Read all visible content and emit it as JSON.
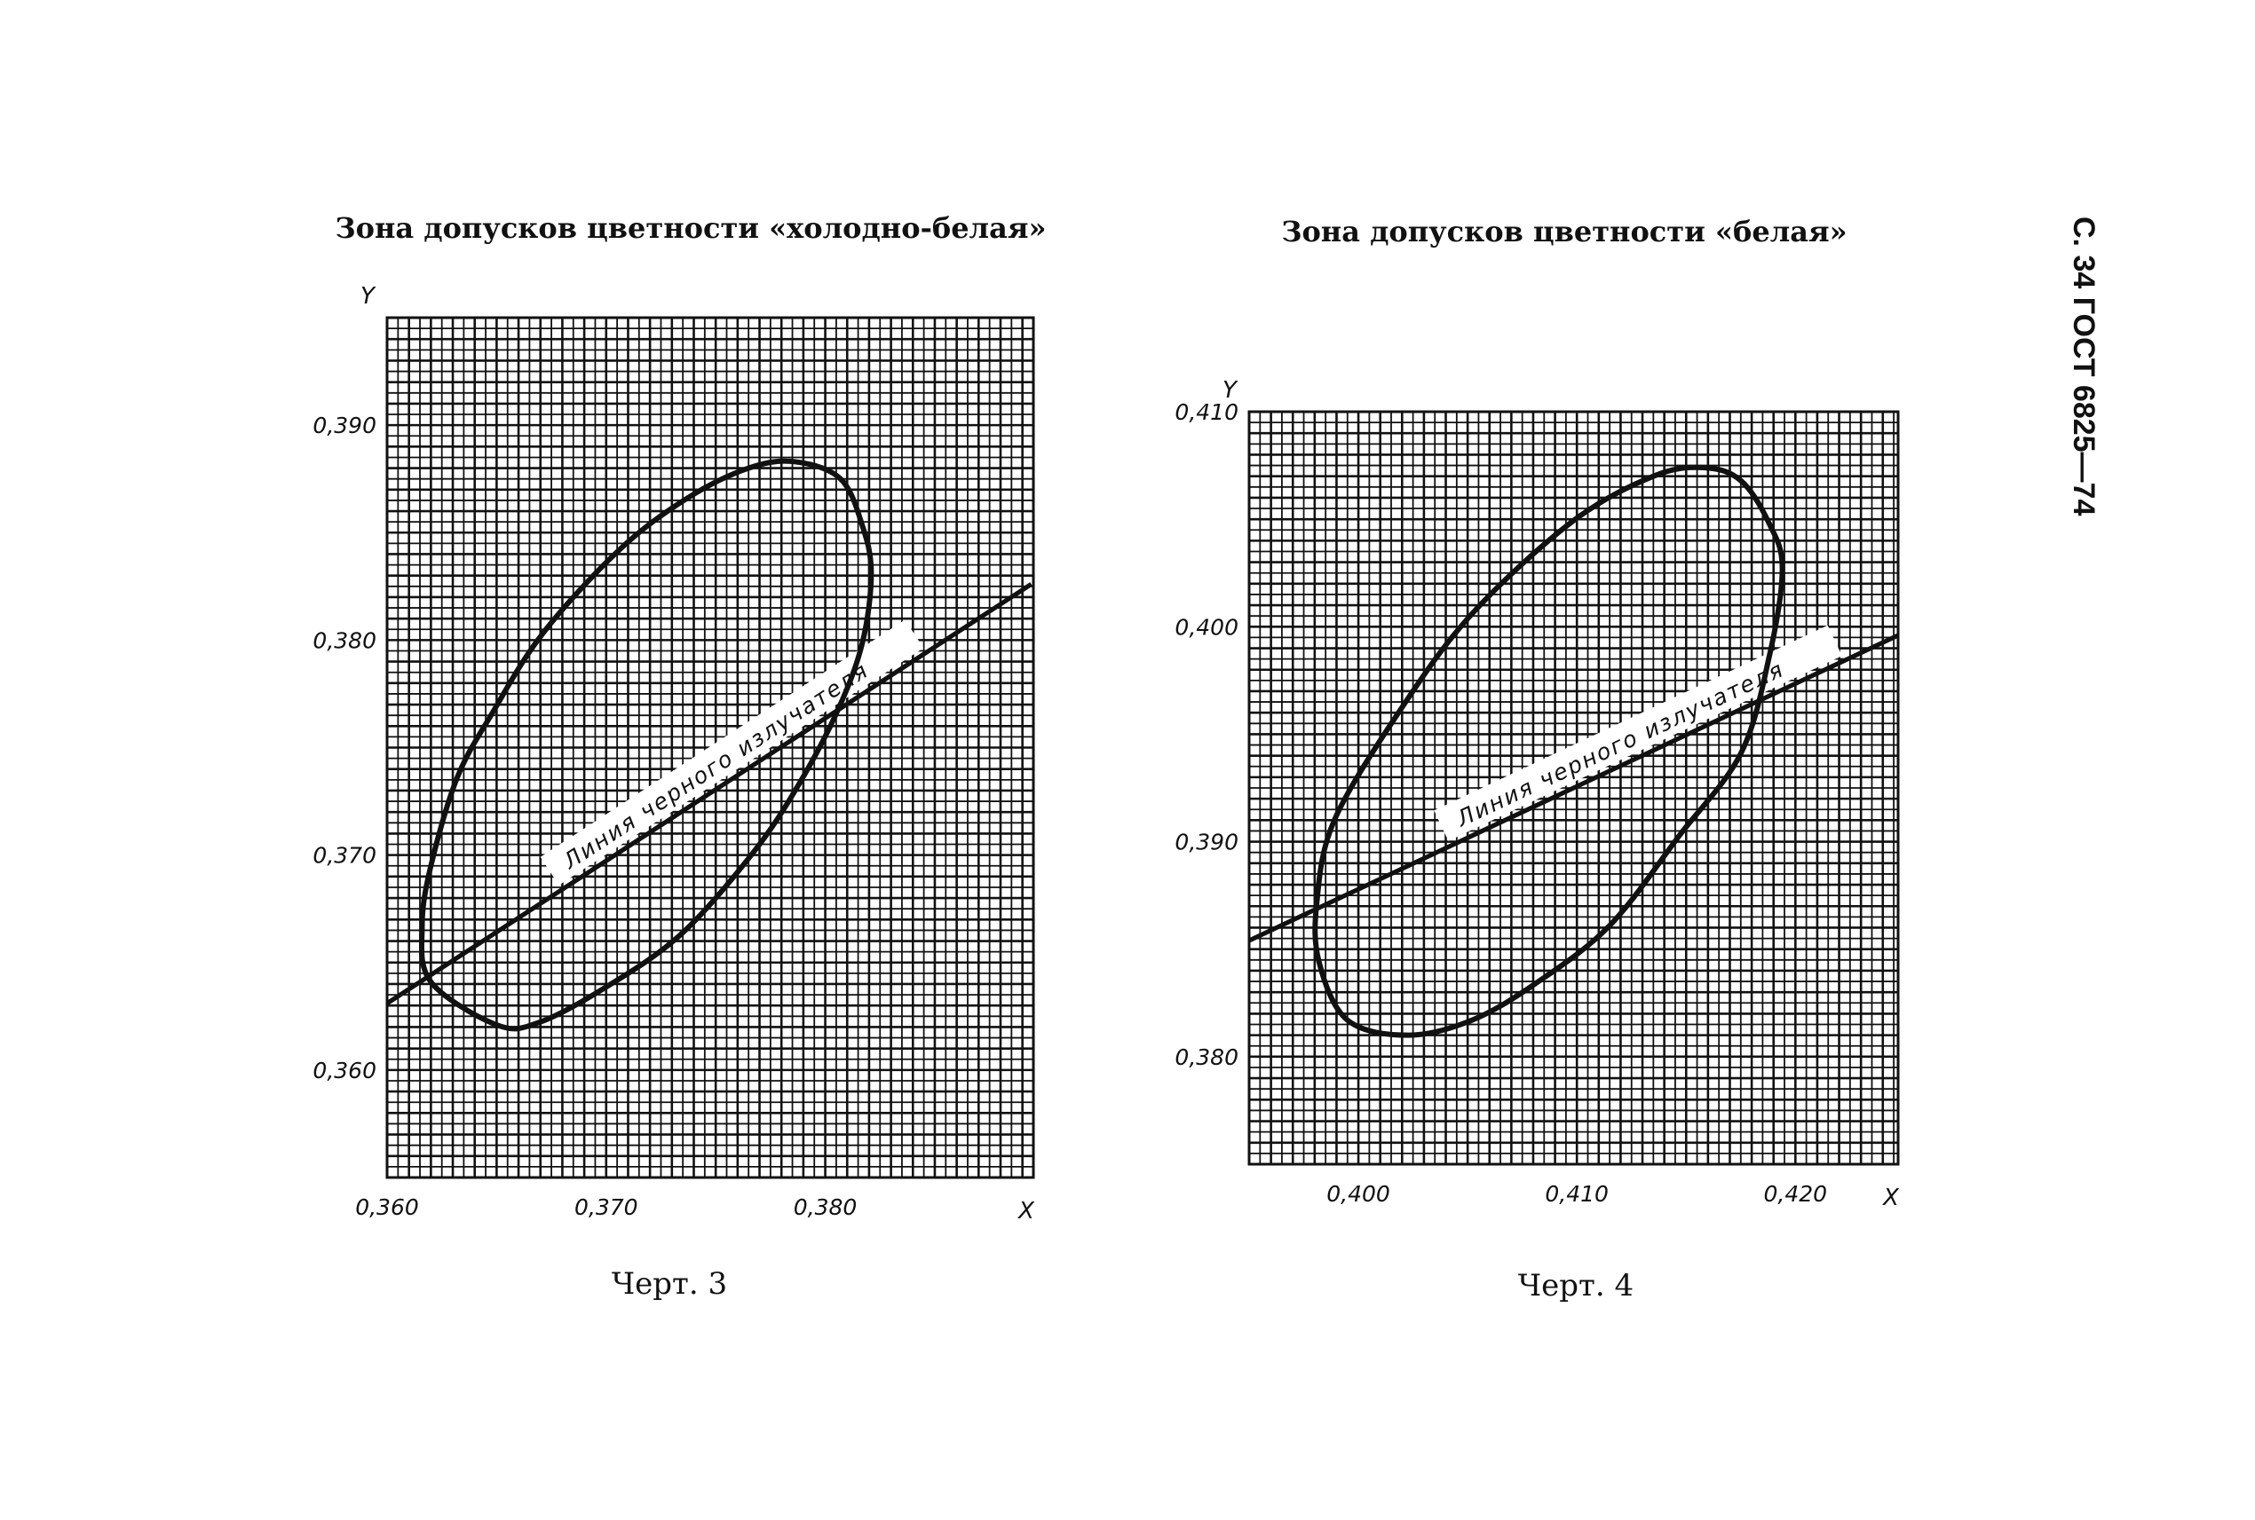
{
  "page_header": "С. 34 ГОСТ 6825—74",
  "chart_data": [
    {
      "type": "line",
      "title": "Зона допусков цветности «холодно-белая»",
      "caption": "Черт. 3",
      "xlabel": "X",
      "ylabel": "Y",
      "xlim": [
        0.36,
        0.3895
      ],
      "ylim": [
        0.355,
        0.395
      ],
      "x_ticks": [
        0.36,
        0.37,
        0.38
      ],
      "x_tick_labels": [
        "0,360",
        "0,370",
        "0,380"
      ],
      "y_ticks": [
        0.36,
        0.37,
        0.38,
        0.39
      ],
      "y_tick_labels": [
        "0,360",
        "0,370",
        "0,380",
        "0,390"
      ],
      "grid": true,
      "grid_step": 0.0005,
      "line_label": "Линия черного излучателя",
      "series": [
        {
          "name": "Линия черного излучателя",
          "kind": "line",
          "points": [
            [
              0.36,
              0.3631
            ],
            [
              0.3894,
              0.3826
            ]
          ]
        },
        {
          "kind": "closed-curve",
          "points": [
            [
              0.365,
              0.3621
            ],
            [
              0.362,
              0.3641
            ],
            [
              0.3616,
              0.3667
            ],
            [
              0.362,
              0.3695
            ],
            [
              0.3632,
              0.3736
            ],
            [
              0.3648,
              0.3766
            ],
            [
              0.3671,
              0.3803
            ],
            [
              0.3706,
              0.3842
            ],
            [
              0.3737,
              0.3866
            ],
            [
              0.3765,
              0.388
            ],
            [
              0.3786,
              0.3883
            ],
            [
              0.3807,
              0.3875
            ],
            [
              0.3817,
              0.3853
            ],
            [
              0.3821,
              0.3831
            ],
            [
              0.3817,
              0.3799
            ],
            [
              0.3806,
              0.3768
            ],
            [
              0.3788,
              0.3733
            ],
            [
              0.3767,
              0.3701
            ],
            [
              0.3734,
              0.3663
            ],
            [
              0.3699,
              0.3638
            ],
            [
              0.3669,
              0.3622
            ]
          ]
        }
      ]
    },
    {
      "type": "line",
      "title": "Зона допусков цветности «белая»",
      "caption": "Черт. 4",
      "xlabel": "X",
      "ylabel": "Y",
      "xlim": [
        0.395,
        0.4247
      ],
      "ylim": [
        0.375,
        0.41
      ],
      "x_ticks": [
        0.4,
        0.41,
        0.42
      ],
      "x_tick_labels": [
        "0,400",
        "0,410",
        "0,420"
      ],
      "y_ticks": [
        0.38,
        0.39,
        0.4,
        0.41
      ],
      "y_tick_labels": [
        "0,380",
        "0,390",
        "0,400",
        "0,410"
      ],
      "grid": true,
      "grid_step": 0.0005,
      "line_label": "Линия черного излучателя",
      "series": [
        {
          "name": "Линия черного излучателя",
          "kind": "line",
          "points": [
            [
              0.395,
              0.3854
            ],
            [
              0.4247,
              0.3996
            ]
          ]
        },
        {
          "kind": "closed-curve",
          "points": [
            [
              0.4023,
              0.381
            ],
            [
              0.3995,
              0.3817
            ],
            [
              0.3982,
              0.3844
            ],
            [
              0.3981,
              0.3872
            ],
            [
              0.3989,
              0.391
            ],
            [
              0.4019,
              0.3961
            ],
            [
              0.4052,
              0.4006
            ],
            [
              0.4098,
              0.4049
            ],
            [
              0.4135,
              0.407
            ],
            [
              0.4158,
              0.4074
            ],
            [
              0.4175,
              0.4068
            ],
            [
              0.4188,
              0.4048
            ],
            [
              0.4194,
              0.4027
            ],
            [
              0.4188,
              0.3986
            ],
            [
              0.4175,
              0.3941
            ],
            [
              0.4147,
              0.3903
            ],
            [
              0.4115,
              0.3861
            ],
            [
              0.4081,
              0.3834
            ],
            [
              0.4052,
              0.3817
            ]
          ]
        }
      ]
    }
  ]
}
